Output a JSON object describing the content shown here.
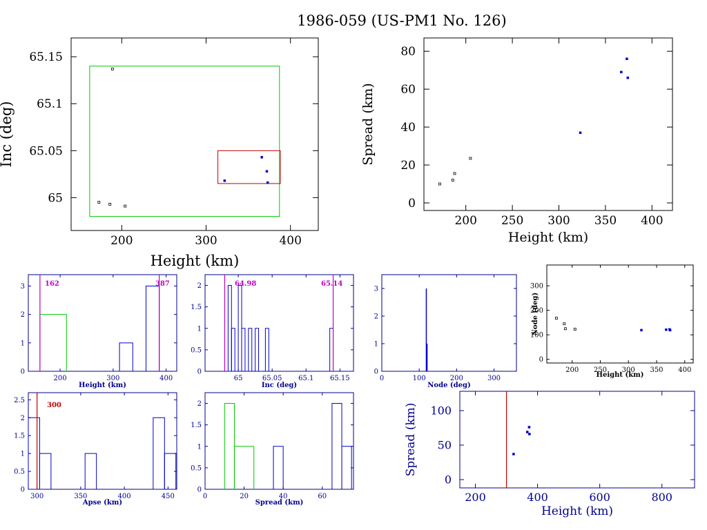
{
  "page": {
    "title": "1986-059 (US-PM1 No. 126)"
  },
  "colors": {
    "axis_black": "#000000",
    "axis_blue": "#00008b",
    "green": "#00c800",
    "red": "#c00000",
    "magenta": "#c000c0",
    "point_blue": "#0000cc"
  },
  "chart_data": [
    {
      "id": "inc_vs_height",
      "type": "scatter",
      "xlabel": "Height (km)",
      "ylabel": "Inc (deg)",
      "xlim": [
        140,
        433
      ],
      "ylim": [
        64.965,
        65.17
      ],
      "xticks": [
        200,
        300,
        400
      ],
      "yticks": [
        65,
        65.05,
        65.1,
        65.15
      ],
      "ytick_labels": [
        "65",
        "65.05",
        "65.1",
        "65.15"
      ],
      "series": [
        {
          "color": "black",
          "points": [
            [
              173,
              64.995
            ],
            [
              186,
              64.993
            ],
            [
              189,
              65.137
            ],
            [
              204,
              64.991
            ]
          ]
        },
        {
          "color": "blue",
          "points": [
            [
              322,
              65.018
            ],
            [
              366,
              65.043
            ],
            [
              372,
              65.028
            ],
            [
              373,
              65.016
            ]
          ]
        }
      ],
      "boxes": [
        {
          "color": "green",
          "x": [
            162,
            387
          ],
          "y": [
            64.98,
            65.14
          ]
        },
        {
          "color": "red",
          "x": [
            314,
            388
          ],
          "y": [
            65.015,
            65.05
          ]
        }
      ]
    },
    {
      "id": "spread_vs_height",
      "type": "scatter",
      "xlabel": "Height (km)",
      "ylabel": "Spread (km)",
      "xlim": [
        155,
        422
      ],
      "ylim": [
        -4,
        87
      ],
      "xticks": [
        200,
        250,
        300,
        350,
        400
      ],
      "yticks": [
        0,
        20,
        40,
        60,
        80
      ],
      "series": [
        {
          "color": "black",
          "points": [
            [
              172,
              10
            ],
            [
              186,
              12
            ],
            [
              188,
              15.5
            ],
            [
              205,
              23.5
            ]
          ]
        },
        {
          "color": "blue",
          "points": [
            [
              323,
              37
            ],
            [
              367,
              69
            ],
            [
              373,
              76
            ],
            [
              374,
              66
            ]
          ]
        }
      ]
    },
    {
      "id": "height_hist",
      "type": "bar",
      "xlabel": "Height (km)",
      "xlim": [
        140,
        420
      ],
      "ylim": [
        0,
        3.4
      ],
      "xticks": [
        200,
        300,
        400
      ],
      "yticks": [
        0,
        1,
        2,
        3
      ],
      "histograms": [
        {
          "color": "green",
          "bins": [
            [
              162,
              212,
              2
            ]
          ]
        },
        {
          "color": "blue",
          "bins": [
            [
              312,
              337,
              1
            ],
            [
              362,
              387,
              3
            ]
          ]
        }
      ],
      "vlines": [
        162,
        387
      ],
      "annotations": [
        "162",
        "387"
      ]
    },
    {
      "id": "inc_hist",
      "type": "bar",
      "xlabel": "Inc (deg)",
      "xlim": [
        64.951,
        65.17
      ],
      "ylim": [
        0,
        2.25
      ],
      "xticks": [
        64.95,
        65,
        65.05,
        65.1,
        65.15
      ],
      "xtick_labels": [
        "64.95",
        "65",
        "65.05",
        "65.1",
        "65.15"
      ],
      "yticks": [
        0,
        0.5,
        1,
        1.5,
        2
      ],
      "ytick_labels": [
        "0",
        "0.5",
        "1",
        "1.5",
        "2"
      ],
      "histograms": [
        {
          "color": "blue",
          "bins": [
            [
              64.985,
              64.99,
              2
            ],
            [
              64.99,
              64.995,
              1
            ],
            [
              65.0,
              65.005,
              2
            ],
            [
              65.005,
              65.01,
              1
            ],
            [
              65.015,
              65.02,
              1
            ],
            [
              65.025,
              65.03,
              1
            ],
            [
              65.04,
              65.045,
              1
            ],
            [
              65.135,
              65.14,
              1
            ]
          ]
        }
      ],
      "vlines": [
        64.98,
        65.14
      ],
      "annotations": [
        "64.98",
        "65.14"
      ]
    },
    {
      "id": "node_hist",
      "type": "bar",
      "xlabel": "Node (deg)",
      "xlim": [
        0,
        360
      ],
      "ylim": [
        0,
        3.5
      ],
      "xticks": [
        0,
        100,
        200,
        300
      ],
      "yticks": [
        0,
        1,
        2,
        3
      ],
      "spikes": [
        {
          "color": "blue",
          "x": 119,
          "value": 3
        },
        {
          "color": "blue",
          "x": 121,
          "value": 1
        }
      ]
    },
    {
      "id": "node_vs_height",
      "type": "scatter",
      "xlabel": "Height (km)",
      "ylabel": "Node (deg)",
      "xlim": [
        155,
        415
      ],
      "ylim": [
        -15,
        385
      ],
      "xticks": [
        150,
        200,
        250,
        300,
        350,
        400
      ],
      "yticks": [
        0,
        100,
        200,
        300
      ],
      "series": [
        {
          "color": "black",
          "points": [
            [
              172,
              168
            ],
            [
              186,
              145
            ],
            [
              188,
              125
            ],
            [
              205,
              123
            ]
          ]
        },
        {
          "color": "blue",
          "points": [
            [
              323,
              119
            ],
            [
              367,
              121
            ],
            [
              373,
              122
            ],
            [
              374,
              119
            ]
          ]
        }
      ]
    },
    {
      "id": "apse_hist",
      "type": "bar",
      "xlabel": "Apse (km)",
      "xlim": [
        290,
        460
      ],
      "ylim": [
        0,
        2.7
      ],
      "xticks": [
        300,
        350,
        400,
        450
      ],
      "yticks": [
        0,
        0.5,
        1,
        1.5,
        2,
        2.5
      ],
      "ytick_labels": [
        "0",
        "0.5",
        "1",
        "1.5",
        "2",
        "2.5"
      ],
      "histograms": [
        {
          "color": "blue",
          "bins": [
            [
              290,
              303,
              2
            ],
            [
              303,
              316,
              1
            ],
            [
              355,
              368,
              1
            ],
            [
              433,
              446,
              2
            ],
            [
              446,
              459,
              1
            ]
          ]
        }
      ],
      "vlines": [
        300
      ],
      "annotations": [
        "300"
      ]
    },
    {
      "id": "spread_hist",
      "type": "bar",
      "xlabel": "Spread (km)",
      "xlim": [
        0,
        76
      ],
      "ylim": [
        0,
        2.25
      ],
      "xticks": [
        0,
        20,
        40,
        60
      ],
      "yticks": [
        0,
        0.5,
        1,
        1.5,
        2
      ],
      "ytick_labels": [
        "0",
        "0.5",
        "1",
        "1.5",
        "2"
      ],
      "histograms": [
        {
          "color": "green",
          "bins": [
            [
              10,
              15,
              2
            ],
            [
              15,
              25,
              1
            ]
          ]
        },
        {
          "color": "blue",
          "bins": [
            [
              35,
              40,
              1
            ],
            [
              65,
              70,
              2
            ],
            [
              70,
              75,
              1
            ]
          ]
        }
      ]
    },
    {
      "id": "spread_vs_height_wide",
      "type": "scatter",
      "xlabel": "Height (km)",
      "ylabel": "Spread (km)",
      "xlim": [
        150,
        905
      ],
      "ylim": [
        -12,
        128
      ],
      "xticks": [
        200,
        400,
        600,
        800
      ],
      "yticks": [
        0,
        50,
        100
      ],
      "series": [
        {
          "color": "blue",
          "points": [
            [
              323,
              37
            ],
            [
              367,
              69
            ],
            [
              373,
              76
            ],
            [
              374,
              66
            ]
          ]
        }
      ],
      "vlines": [
        300
      ]
    }
  ]
}
